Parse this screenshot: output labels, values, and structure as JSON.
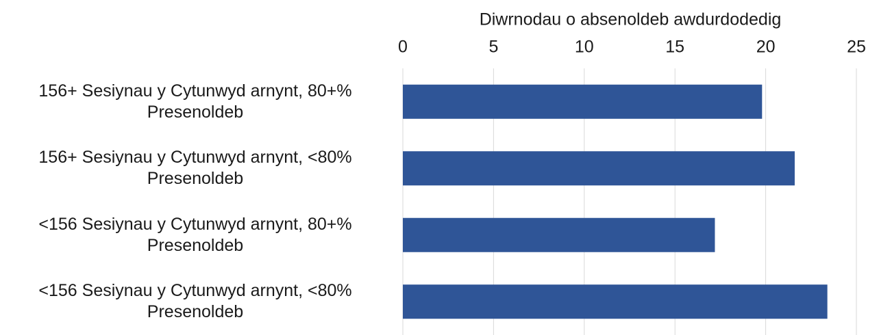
{
  "chart_data": {
    "type": "barh",
    "xlabel": "Diwrnodau o absenoldeb awdurdodedig",
    "categories": [
      "156+ Sesiynau y Cytunwyd arnynt, 80+% Presenoldeb",
      "156+ Sesiynau y Cytunwyd arnynt, <80% Presenoldeb",
      "<156 Sesiynau y Cytunwyd arnynt, 80+% Presenoldeb",
      "<156 Sesiynau y Cytunwyd arnynt, <80% Presenoldeb"
    ],
    "values": [
      19.8,
      21.6,
      17.2,
      23.4
    ],
    "color": "#2f5597",
    "xlim": [
      0,
      25
    ],
    "xticks": [
      0,
      5,
      10,
      15,
      20,
      25
    ],
    "grid": true
  }
}
